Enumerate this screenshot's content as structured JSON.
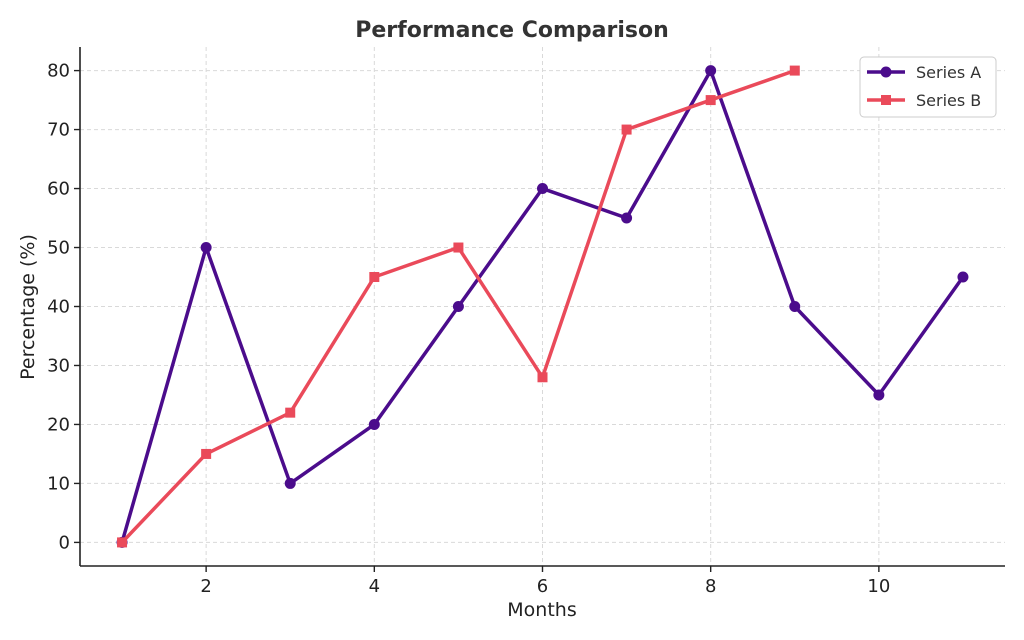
{
  "chart_data": {
    "type": "line",
    "title": "Performance Comparison",
    "xlabel": "Months",
    "ylabel": "Percentage (%)",
    "xlim": [
      0.5,
      11.5
    ],
    "ylim": [
      -4,
      84
    ],
    "xticks": [
      2,
      4,
      6,
      8,
      10
    ],
    "yticks": [
      0,
      10,
      20,
      30,
      40,
      50,
      60,
      70,
      80
    ],
    "grid": true,
    "legend_position": "top-right",
    "series": [
      {
        "name": "Series A",
        "color": "#4b0c8c",
        "marker": "circle",
        "x": [
          1,
          2,
          3,
          4,
          5,
          6,
          7,
          8,
          9,
          10,
          11
        ],
        "y": [
          0,
          50,
          10,
          20,
          40,
          60,
          55,
          80,
          40,
          25,
          45
        ]
      },
      {
        "name": "Series B",
        "color": "#ea4a5a",
        "marker": "square",
        "x": [
          1,
          2,
          3,
          4,
          5,
          6,
          7,
          8,
          9
        ],
        "y": [
          0,
          15,
          22,
          45,
          50,
          28,
          70,
          75,
          80
        ]
      }
    ]
  }
}
